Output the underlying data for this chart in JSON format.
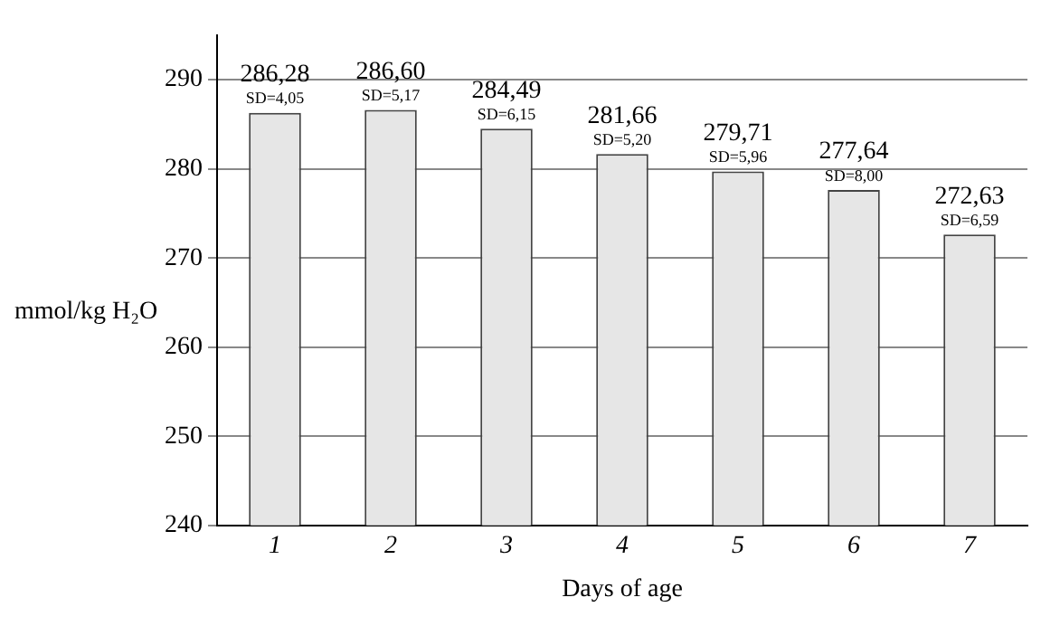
{
  "chart_data": {
    "type": "bar",
    "xlabel": "Days of age",
    "ylabel": "mmol/kg H₂O",
    "categories": [
      "1",
      "2",
      "3",
      "4",
      "5",
      "6",
      "7"
    ],
    "values": [
      286.28,
      286.6,
      284.49,
      281.66,
      279.71,
      277.64,
      272.63
    ],
    "value_labels": [
      "286,28",
      "286,60",
      "284,49",
      "281,66",
      "279,71",
      "277,64",
      "272,63"
    ],
    "annotations": [
      {
        "text": "SD=4,05",
        "x": "1",
        "y": 286.28
      },
      {
        "text": "SD=5,17",
        "x": "2",
        "y": 286.6
      },
      {
        "text": "SD=6,15",
        "x": "3",
        "y": 284.49
      },
      {
        "text": "SD=5,20",
        "x": "4",
        "y": 281.66
      },
      {
        "text": "SD=5,96",
        "x": "5",
        "y": 279.71
      },
      {
        "text": "SD=8,00",
        "x": "6",
        "y": 277.64
      },
      {
        "text": "SD=6,59",
        "x": "7",
        "y": 272.63
      }
    ],
    "color": "#e6e6e6",
    "ylim": [
      240,
      295
    ],
    "yticks": [
      240,
      250,
      260,
      270,
      280,
      290
    ],
    "grid": "y"
  }
}
